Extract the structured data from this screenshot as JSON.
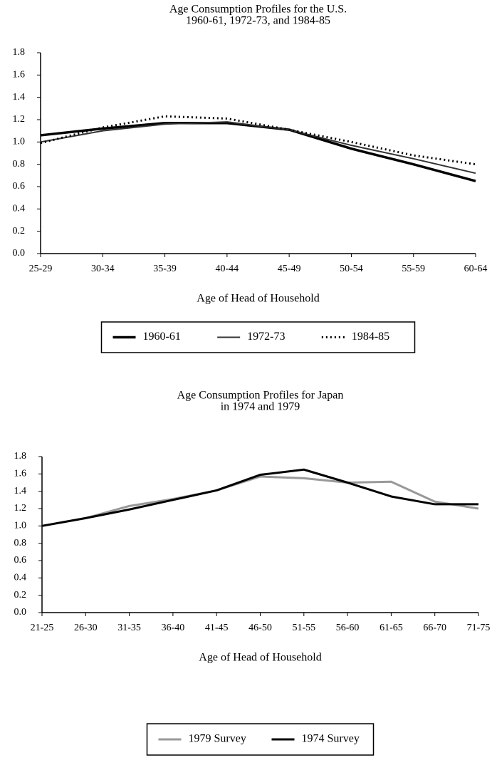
{
  "chart_data": [
    {
      "type": "line",
      "title": "Age Consumption Profiles for the U.S.",
      "subtitle": "1960-61, 1972-73, and 1984-85",
      "x_label": "Age of Head of Household",
      "categories": [
        "25-29",
        "30-34",
        "35-39",
        "40-44",
        "45-49",
        "50-54",
        "55-59",
        "60-64"
      ],
      "series": [
        {
          "name": "1960-61",
          "color": "#000000",
          "width": 3.5,
          "dash": "solid",
          "values": [
            1.06,
            1.12,
            1.17,
            1.17,
            1.11,
            0.94,
            0.8,
            0.65
          ]
        },
        {
          "name": "1972-73",
          "color": "#333333",
          "width": 2,
          "dash": "solid",
          "values": [
            1.0,
            1.1,
            1.16,
            1.18,
            1.11,
            0.97,
            0.85,
            0.72
          ]
        },
        {
          "name": "1984-85",
          "color": "#000000",
          "width": 3,
          "dash": "dotted",
          "values": [
            0.99,
            1.13,
            1.23,
            1.21,
            1.11,
            1.0,
            0.88,
            0.8
          ]
        }
      ],
      "ylim": [
        0,
        1.8
      ],
      "yticks": [
        {
          "value": 0,
          "label": "0.0"
        },
        0.2,
        0.4,
        0.6,
        0.8,
        {
          "value": 1,
          "label": "1.0"
        },
        1.2,
        1.4,
        1.6,
        1.8
      ],
      "legend": "bottom"
    },
    {
      "type": "line",
      "title": "Age Consumption Profiles for Japan",
      "subtitle": "in 1974 and 1979",
      "x_label": "Age of Head of Household",
      "categories": [
        "21-25",
        "26-30",
        "31-35",
        "36-40",
        "41-45",
        "46-50",
        "51-55",
        "56-60",
        "61-65",
        "66-70",
        "71-75"
      ],
      "series": [
        {
          "name": "1979 Survey",
          "color": "#999999",
          "width": 3,
          "dash": "solid",
          "values": [
            1.0,
            1.09,
            1.23,
            1.31,
            1.41,
            1.57,
            1.55,
            1.5,
            1.51,
            1.28,
            1.2
          ]
        },
        {
          "name": "1974 Survey",
          "color": "#000000",
          "width": 3,
          "dash": "solid",
          "values": [
            1.0,
            1.09,
            1.19,
            1.3,
            1.41,
            1.59,
            1.65,
            1.5,
            1.34,
            1.25,
            1.25
          ]
        }
      ],
      "ylim": [
        0,
        1.8
      ],
      "yticks": [
        {
          "value": 0,
          "label": "0.0"
        },
        0.2,
        0.4,
        0.6,
        0.8,
        {
          "value": 1,
          "label": "1.0"
        },
        1.2,
        1.4,
        1.6,
        1.8
      ],
      "legend": "bottom"
    }
  ]
}
